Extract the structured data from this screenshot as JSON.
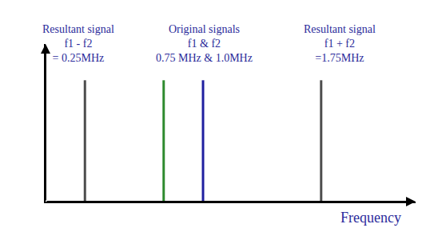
{
  "chart_data": {
    "type": "stem",
    "x": [
      0.25,
      0.75,
      1.0,
      1.75
    ],
    "values": [
      0.77,
      0.77,
      0.77,
      0.77
    ],
    "colors": [
      "#4d4d4d",
      "#2e8b2e",
      "#1f1fa0",
      "#4d4d4d"
    ],
    "xlim": [
      0,
      2.35
    ],
    "ylim": [
      0,
      1
    ],
    "tick_labels": false,
    "grid": false,
    "xlabel": "Frequency",
    "annotations": [
      {
        "text": [
          "Resultant signal",
          "f1 - f2",
          "= 0.25MHz"
        ]
      },
      {
        "text": [
          "Original signals",
          "f1 & f2",
          "0.75 MHz & 1.0MHz"
        ]
      },
      {
        "text": [
          "Resultant signal",
          "f1 + f2",
          "=1.75MHz"
        ]
      }
    ]
  }
}
